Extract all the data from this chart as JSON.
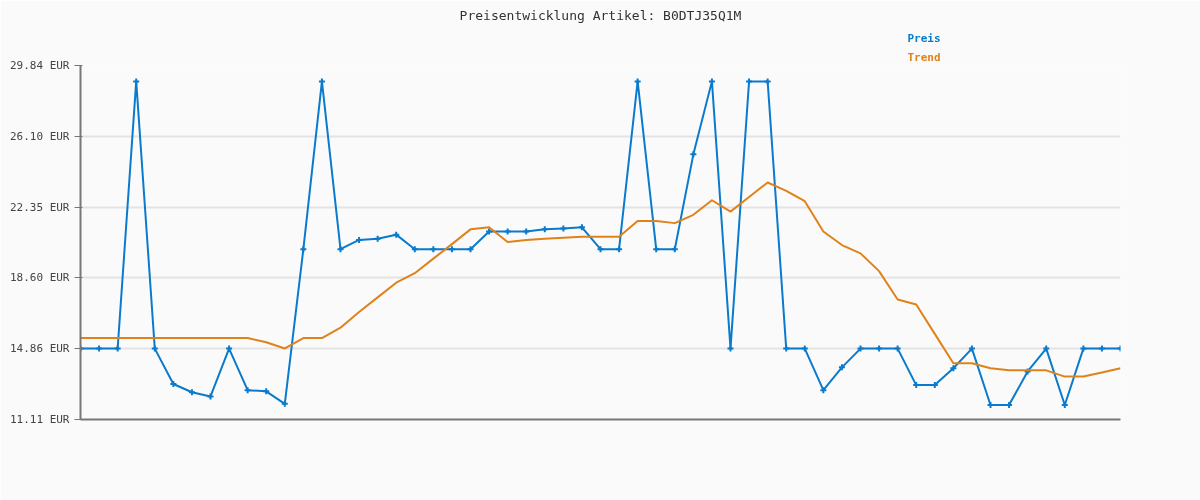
{
  "chart_data": {
    "type": "line",
    "title": "Preisentwicklung Artikel: B0DTJ35Q1M",
    "categories": [
      null,
      null,
      null,
      null,
      null,
      null,
      null,
      null,
      null,
      null,
      null,
      null,
      null,
      null,
      null,
      null,
      null,
      null,
      null,
      null,
      null,
      null,
      null,
      null,
      null,
      null,
      null,
      null,
      null,
      null,
      null,
      null,
      null,
      null,
      null,
      null,
      null,
      null,
      null,
      null,
      null,
      null,
      null,
      null,
      null,
      null,
      null,
      null,
      null,
      null,
      null,
      null,
      null,
      null,
      null,
      null,
      null
    ],
    "series": [
      {
        "name": "Preis",
        "color": "#0a7acc",
        "marker": "cross",
        "values": [
          14.86,
          14.86,
          14.86,
          29.0,
          14.86,
          12.99,
          12.55,
          12.33,
          14.86,
          12.66,
          12.6,
          11.94,
          20.12,
          29.0,
          20.12,
          20.61,
          20.67,
          20.89,
          20.12,
          20.12,
          20.12,
          20.12,
          21.06,
          21.06,
          21.06,
          21.17,
          21.22,
          21.28,
          20.12,
          20.12,
          29.0,
          20.12,
          20.12,
          25.14,
          29.0,
          14.86,
          29.0,
          29.0,
          14.86,
          14.86,
          12.66,
          13.87,
          14.86,
          14.86,
          14.86,
          12.93,
          12.93,
          13.82,
          14.86,
          11.88,
          11.88,
          13.65,
          14.86,
          11.88,
          14.86,
          14.86,
          14.86
        ]
      },
      {
        "name": "Trend",
        "color": "#e0821a",
        "marker": "none",
        "values": [
          15.42,
          15.42,
          15.42,
          15.42,
          15.42,
          15.42,
          15.42,
          15.42,
          15.42,
          15.42,
          15.2,
          14.87,
          15.42,
          15.42,
          15.97,
          16.8,
          17.57,
          18.35,
          18.85,
          19.62,
          20.39,
          21.17,
          21.28,
          20.5,
          20.61,
          20.67,
          20.72,
          20.78,
          20.78,
          20.78,
          21.61,
          21.61,
          21.5,
          21.94,
          22.71,
          22.11,
          22.88,
          23.65,
          23.21,
          22.66,
          21.06,
          20.34,
          19.9,
          18.96,
          17.46,
          17.19,
          15.64,
          14.09,
          14.09,
          13.82,
          13.71,
          13.71,
          13.71,
          13.38,
          13.38,
          13.6,
          13.82
        ]
      }
    ],
    "ylim": [
      11.11,
      29.84
    ],
    "yticks": [
      {
        "value": 11.11,
        "label": "11.11 EUR"
      },
      {
        "value": 14.86,
        "label": "14.86 EUR"
      },
      {
        "value": 18.6,
        "label": "18.60 EUR"
      },
      {
        "value": 22.35,
        "label": "22.35 EUR"
      },
      {
        "value": 26.1,
        "label": "26.10 EUR"
      },
      {
        "value": 29.84,
        "label": "29.84 EUR"
      }
    ],
    "grid": "y",
    "line_style": "solid"
  }
}
